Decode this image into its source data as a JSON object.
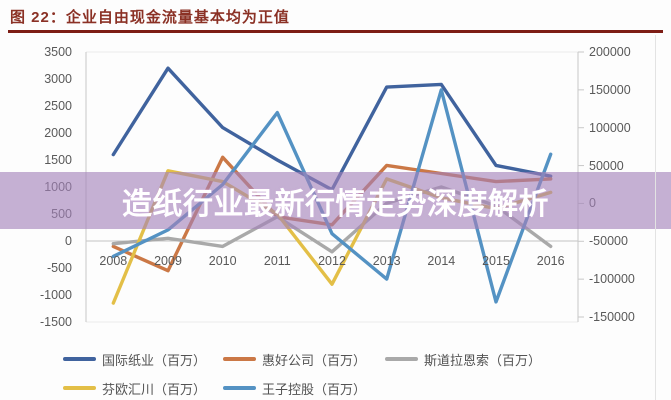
{
  "figure_title": "图 22：企业自由现金流量基本均为正值",
  "overlay_banner": {
    "text": "造纸行业最新行情走势深度解析"
  },
  "colors": {
    "title_text": "#8b3125",
    "title_rule": "#7d1d15",
    "banner_background": "rgba(163,129,185,0.62)",
    "axis_text": "#595959",
    "legend_text": "#525252",
    "zero_gridline": "#c2c2c2",
    "edge_gridline": "#ececec",
    "axis_line": "#c8c8c8"
  },
  "chart_data": {
    "type": "line",
    "title": "图 22：企业自由现金流量基本均为正值",
    "categories": [
      "2008",
      "2009",
      "2010",
      "2011",
      "2012",
      "2013",
      "2014",
      "2015",
      "2016"
    ],
    "series": [
      {
        "id": "intl-paper",
        "name": "国际纸业（百万）",
        "axis": "left",
        "color": "#40639e",
        "values": [
          1600,
          3200,
          2100,
          1500,
          950,
          2850,
          2900,
          1400,
          1200
        ]
      },
      {
        "id": "weyerhaeuser",
        "name": "惠好公司（百万）",
        "axis": "left",
        "color": "#cb7846",
        "values": [
          -100,
          -550,
          1550,
          450,
          300,
          1400,
          1250,
          1100,
          1150
        ]
      },
      {
        "id": "stora-enso",
        "name": "斯道拉恩索（百万）",
        "axis": "left",
        "color": "#a9a9a9",
        "values": [
          -50,
          50,
          -100,
          450,
          -200,
          700,
          1000,
          650,
          -100
        ]
      },
      {
        "id": "upm",
        "name": "芬欧汇川（百万）",
        "axis": "left",
        "color": "#e3bf47",
        "values": [
          -1150,
          1300,
          1100,
          500,
          -800,
          1150,
          800,
          600,
          900
        ]
      },
      {
        "id": "oji-holdings",
        "name": "王子控股（百万）",
        "axis": "right",
        "color": "#5492c3",
        "values": [
          -70000,
          -35000,
          25000,
          120000,
          -40000,
          -100000,
          150000,
          -130000,
          65000
        ]
      }
    ],
    "axes": {
      "left": {
        "min": -1500,
        "max": 3500,
        "tick_labels": [
          "3500",
          "3000",
          "2500",
          "2000",
          "1500",
          "1000",
          "500",
          "0",
          "-500",
          "-1000",
          "-1500"
        ]
      },
      "right": {
        "min": -150000,
        "max": 200000,
        "tick_labels": [
          "200000",
          "150000",
          "100000",
          "50000",
          "0",
          "-50000",
          "-100000",
          "-150000"
        ]
      }
    },
    "legend_position": "bottom",
    "grid": "horizontal zero line plus top/bottom plot edges"
  }
}
